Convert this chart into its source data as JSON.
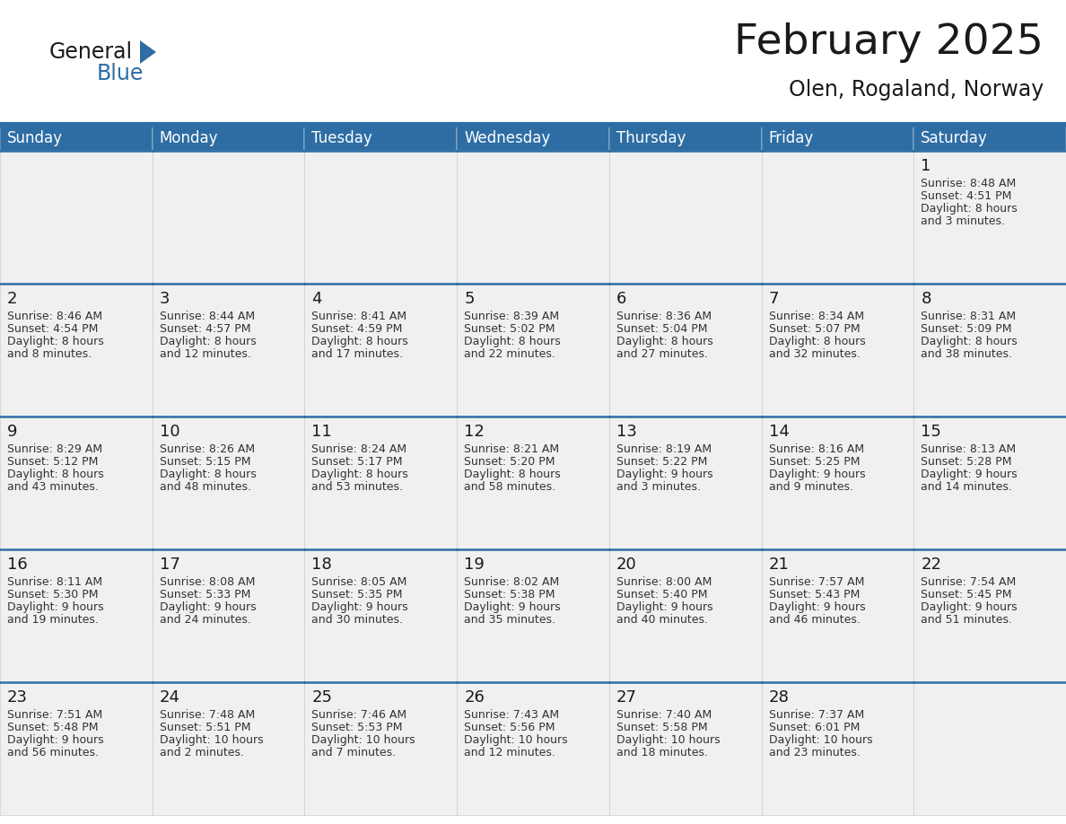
{
  "title": "February 2025",
  "subtitle": "Olen, Rogaland, Norway",
  "header_bg": "#2E6DA4",
  "header_text_color": "#FFFFFF",
  "cell_bg": "#F0F0F0",
  "border_color": "#2E6DA4",
  "text_color": "#333333",
  "day_num_color": "#1a1a1a",
  "day_names": [
    "Sunday",
    "Monday",
    "Tuesday",
    "Wednesday",
    "Thursday",
    "Friday",
    "Saturday"
  ],
  "days": [
    {
      "day": 1,
      "col": 6,
      "row": 0,
      "sunrise": "8:48 AM",
      "sunset": "4:51 PM",
      "daylight": "8 hours and 3 minutes."
    },
    {
      "day": 2,
      "col": 0,
      "row": 1,
      "sunrise": "8:46 AM",
      "sunset": "4:54 PM",
      "daylight": "8 hours and 8 minutes."
    },
    {
      "day": 3,
      "col": 1,
      "row": 1,
      "sunrise": "8:44 AM",
      "sunset": "4:57 PM",
      "daylight": "8 hours and 12 minutes."
    },
    {
      "day": 4,
      "col": 2,
      "row": 1,
      "sunrise": "8:41 AM",
      "sunset": "4:59 PM",
      "daylight": "8 hours and 17 minutes."
    },
    {
      "day": 5,
      "col": 3,
      "row": 1,
      "sunrise": "8:39 AM",
      "sunset": "5:02 PM",
      "daylight": "8 hours and 22 minutes."
    },
    {
      "day": 6,
      "col": 4,
      "row": 1,
      "sunrise": "8:36 AM",
      "sunset": "5:04 PM",
      "daylight": "8 hours and 27 minutes."
    },
    {
      "day": 7,
      "col": 5,
      "row": 1,
      "sunrise": "8:34 AM",
      "sunset": "5:07 PM",
      "daylight": "8 hours and 32 minutes."
    },
    {
      "day": 8,
      "col": 6,
      "row": 1,
      "sunrise": "8:31 AM",
      "sunset": "5:09 PM",
      "daylight": "8 hours and 38 minutes."
    },
    {
      "day": 9,
      "col": 0,
      "row": 2,
      "sunrise": "8:29 AM",
      "sunset": "5:12 PM",
      "daylight": "8 hours and 43 minutes."
    },
    {
      "day": 10,
      "col": 1,
      "row": 2,
      "sunrise": "8:26 AM",
      "sunset": "5:15 PM",
      "daylight": "8 hours and 48 minutes."
    },
    {
      "day": 11,
      "col": 2,
      "row": 2,
      "sunrise": "8:24 AM",
      "sunset": "5:17 PM",
      "daylight": "8 hours and 53 minutes."
    },
    {
      "day": 12,
      "col": 3,
      "row": 2,
      "sunrise": "8:21 AM",
      "sunset": "5:20 PM",
      "daylight": "8 hours and 58 minutes."
    },
    {
      "day": 13,
      "col": 4,
      "row": 2,
      "sunrise": "8:19 AM",
      "sunset": "5:22 PM",
      "daylight": "9 hours and 3 minutes."
    },
    {
      "day": 14,
      "col": 5,
      "row": 2,
      "sunrise": "8:16 AM",
      "sunset": "5:25 PM",
      "daylight": "9 hours and 9 minutes."
    },
    {
      "day": 15,
      "col": 6,
      "row": 2,
      "sunrise": "8:13 AM",
      "sunset": "5:28 PM",
      "daylight": "9 hours and 14 minutes."
    },
    {
      "day": 16,
      "col": 0,
      "row": 3,
      "sunrise": "8:11 AM",
      "sunset": "5:30 PM",
      "daylight": "9 hours and 19 minutes."
    },
    {
      "day": 17,
      "col": 1,
      "row": 3,
      "sunrise": "8:08 AM",
      "sunset": "5:33 PM",
      "daylight": "9 hours and 24 minutes."
    },
    {
      "day": 18,
      "col": 2,
      "row": 3,
      "sunrise": "8:05 AM",
      "sunset": "5:35 PM",
      "daylight": "9 hours and 30 minutes."
    },
    {
      "day": 19,
      "col": 3,
      "row": 3,
      "sunrise": "8:02 AM",
      "sunset": "5:38 PM",
      "daylight": "9 hours and 35 minutes."
    },
    {
      "day": 20,
      "col": 4,
      "row": 3,
      "sunrise": "8:00 AM",
      "sunset": "5:40 PM",
      "daylight": "9 hours and 40 minutes."
    },
    {
      "day": 21,
      "col": 5,
      "row": 3,
      "sunrise": "7:57 AM",
      "sunset": "5:43 PM",
      "daylight": "9 hours and 46 minutes."
    },
    {
      "day": 22,
      "col": 6,
      "row": 3,
      "sunrise": "7:54 AM",
      "sunset": "5:45 PM",
      "daylight": "9 hours and 51 minutes."
    },
    {
      "day": 23,
      "col": 0,
      "row": 4,
      "sunrise": "7:51 AM",
      "sunset": "5:48 PM",
      "daylight": "9 hours and 56 minutes."
    },
    {
      "day": 24,
      "col": 1,
      "row": 4,
      "sunrise": "7:48 AM",
      "sunset": "5:51 PM",
      "daylight": "10 hours and 2 minutes."
    },
    {
      "day": 25,
      "col": 2,
      "row": 4,
      "sunrise": "7:46 AM",
      "sunset": "5:53 PM",
      "daylight": "10 hours and 7 minutes."
    },
    {
      "day": 26,
      "col": 3,
      "row": 4,
      "sunrise": "7:43 AM",
      "sunset": "5:56 PM",
      "daylight": "10 hours and 12 minutes."
    },
    {
      "day": 27,
      "col": 4,
      "row": 4,
      "sunrise": "7:40 AM",
      "sunset": "5:58 PM",
      "daylight": "10 hours and 18 minutes."
    },
    {
      "day": 28,
      "col": 5,
      "row": 4,
      "sunrise": "7:37 AM",
      "sunset": "6:01 PM",
      "daylight": "10 hours and 23 minutes."
    }
  ],
  "num_rows": 5,
  "title_fontsize": 34,
  "subtitle_fontsize": 17,
  "header_fontsize": 12,
  "day_num_fontsize": 13,
  "cell_text_fontsize": 9,
  "logo_general_color": "#1a1a1a",
  "logo_blue_color": "#2E6DA4"
}
